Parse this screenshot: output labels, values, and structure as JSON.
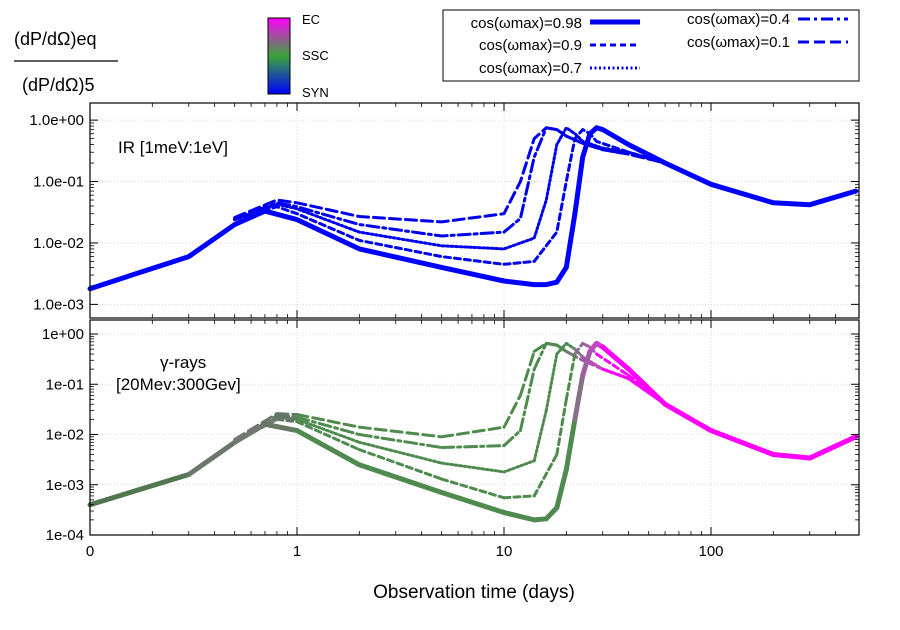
{
  "colors": {
    "blue": "#0000ee",
    "syn": "#0000ff",
    "ssc": "#33aa33",
    "ec": "#ff00ff",
    "frame": "#000000"
  },
  "header": {
    "ratio_numerator": "(dP/dΩ)eq",
    "ratio_denominator": "(dP/dΩ)5"
  },
  "colorbar": {
    "labels": [
      "EC",
      "SSC",
      "SYN"
    ],
    "colors_top_to_bottom": [
      "#ff00ff",
      "#3aa53a",
      "#0000ff"
    ]
  },
  "legend": {
    "position": "top-right",
    "entries": [
      {
        "label": "cos(ωmax)=0.98",
        "style": "solid-thick"
      },
      {
        "label": "cos(ωmax)=0.9",
        "style": "dashed-short"
      },
      {
        "label": "cos(ωmax)=0.7",
        "style": "dotted"
      },
      {
        "label": "cos(ωmax)=0.4",
        "style": "dash-dot"
      },
      {
        "label": "cos(ωmax)=0.1",
        "style": "dashed"
      }
    ]
  },
  "chart_data": [
    {
      "type": "line",
      "panel": "top",
      "annotation": "IR [1meV:1eV]",
      "xscale": "log",
      "yscale": "log",
      "xlim": [
        0,
        500
      ],
      "ylim": [
        0.0006,
        1.9
      ],
      "xticks": [
        "0",
        "1",
        "10",
        "100"
      ],
      "yticks": [
        "1.0e-03",
        "1.0e-02",
        "1.0e-01",
        "1.0e+00"
      ],
      "series": [
        {
          "name": "cos(ωmax)=0.98",
          "x": [
            0.1,
            0.3,
            0.5,
            0.7,
            1,
            2,
            5,
            10,
            14,
            16,
            18,
            20,
            22,
            24,
            26,
            28,
            30,
            40,
            60,
            100,
            200,
            300,
            500
          ],
          "y": [
            0.0018,
            0.006,
            0.02,
            0.033,
            0.024,
            0.008,
            0.004,
            0.0024,
            0.0021,
            0.0021,
            0.0023,
            0.004,
            0.03,
            0.25,
            0.6,
            0.75,
            0.7,
            0.4,
            0.2,
            0.09,
            0.045,
            0.042,
            0.07
          ]
        },
        {
          "name": "cos(ωmax)=0.9",
          "x": [
            0.5,
            0.8,
            1,
            2,
            5,
            10,
            14,
            18,
            20,
            22,
            24,
            26,
            28,
            40,
            60
          ],
          "y": [
            0.024,
            0.039,
            0.03,
            0.011,
            0.006,
            0.0045,
            0.005,
            0.015,
            0.1,
            0.5,
            0.7,
            0.6,
            0.45,
            0.3,
            0.2
          ]
        },
        {
          "name": "cos(ωmax)=0.7",
          "x": [
            0.5,
            0.8,
            1,
            2,
            5,
            10,
            14,
            16,
            18,
            20,
            22,
            24,
            30,
            40,
            60
          ],
          "y": [
            0.024,
            0.043,
            0.036,
            0.015,
            0.009,
            0.008,
            0.012,
            0.05,
            0.4,
            0.75,
            0.6,
            0.45,
            0.35,
            0.3,
            0.2
          ]
        },
        {
          "name": "cos(ωmax)=0.4",
          "x": [
            0.5,
            0.8,
            1,
            2,
            5,
            10,
            12,
            14,
            16,
            18,
            20,
            24,
            30,
            40,
            60
          ],
          "y": [
            0.025,
            0.045,
            0.039,
            0.02,
            0.013,
            0.015,
            0.025,
            0.25,
            0.75,
            0.7,
            0.55,
            0.42,
            0.33,
            0.28,
            0.2
          ]
        },
        {
          "name": "cos(ωmax)=0.1",
          "x": [
            0.5,
            0.8,
            1,
            2,
            5,
            10,
            12,
            14,
            16,
            18,
            20,
            24,
            30,
            40,
            60
          ],
          "y": [
            0.026,
            0.05,
            0.045,
            0.027,
            0.022,
            0.03,
            0.1,
            0.5,
            0.75,
            0.7,
            0.55,
            0.42,
            0.33,
            0.28,
            0.2
          ]
        }
      ]
    },
    {
      "type": "line",
      "panel": "bottom",
      "annotation_line1": "γ-rays",
      "annotation_line2": "[20Mev:300Gev]",
      "xscale": "log",
      "yscale": "log",
      "xlim": [
        0,
        500
      ],
      "ylim": [
        0.0001,
        1.9
      ],
      "xticks": [
        "0",
        "1",
        "10",
        "100"
      ],
      "yticks": [
        "1e-04",
        "1e-03",
        "1e-02",
        "1e-01",
        "1e+00"
      ],
      "xlabel": "Observation time (days)",
      "series": [
        {
          "name": "cos(ωmax)=0.98",
          "x": [
            0.1,
            0.3,
            0.5,
            0.7,
            1,
            2,
            5,
            10,
            14,
            16,
            18,
            20,
            22,
            24,
            26,
            28,
            30,
            40,
            60,
            100,
            200,
            300,
            500
          ],
          "y": [
            0.0004,
            0.0016,
            0.007,
            0.016,
            0.012,
            0.0025,
            0.0007,
            0.00028,
            0.0002,
            0.00021,
            0.00035,
            0.002,
            0.02,
            0.15,
            0.45,
            0.65,
            0.55,
            0.2,
            0.04,
            0.012,
            0.004,
            0.0034,
            0.009
          ]
        },
        {
          "name": "cos(ωmax)=0.9",
          "x": [
            0.5,
            0.8,
            1,
            2,
            5,
            10,
            14,
            18,
            20,
            22,
            24,
            26,
            28,
            40,
            60
          ],
          "y": [
            0.007,
            0.02,
            0.018,
            0.005,
            0.0013,
            0.00055,
            0.0006,
            0.004,
            0.05,
            0.4,
            0.65,
            0.55,
            0.4,
            0.15,
            0.04
          ]
        },
        {
          "name": "cos(ωmax)=0.7",
          "x": [
            0.5,
            0.8,
            1,
            2,
            5,
            10,
            14,
            16,
            18,
            20,
            22,
            24,
            30,
            40,
            60
          ],
          "y": [
            0.007,
            0.022,
            0.02,
            0.007,
            0.0027,
            0.0018,
            0.003,
            0.03,
            0.4,
            0.65,
            0.5,
            0.35,
            0.2,
            0.13,
            0.04
          ]
        },
        {
          "name": "cos(ωmax)=0.4",
          "x": [
            0.5,
            0.8,
            1,
            2,
            5,
            10,
            12,
            14,
            16,
            18,
            20,
            24,
            30,
            40,
            60
          ],
          "y": [
            0.007,
            0.024,
            0.022,
            0.01,
            0.0055,
            0.006,
            0.012,
            0.2,
            0.65,
            0.6,
            0.45,
            0.3,
            0.2,
            0.13,
            0.04
          ]
        },
        {
          "name": "cos(ωmax)=0.1",
          "x": [
            0.5,
            0.8,
            1,
            2,
            5,
            10,
            12,
            14,
            16,
            18,
            20,
            24,
            30,
            40,
            60
          ],
          "y": [
            0.008,
            0.026,
            0.025,
            0.014,
            0.009,
            0.014,
            0.06,
            0.45,
            0.65,
            0.6,
            0.45,
            0.3,
            0.2,
            0.13,
            0.04
          ]
        }
      ]
    }
  ]
}
